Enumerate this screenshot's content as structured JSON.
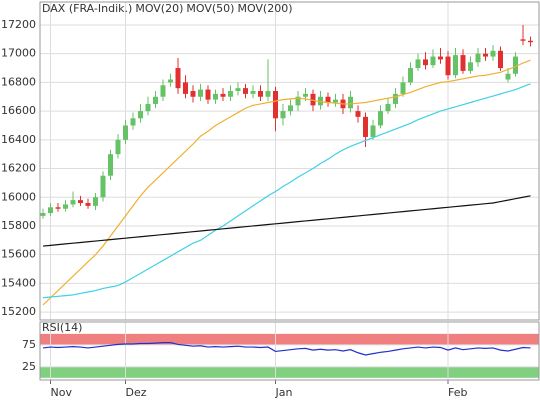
{
  "chart_data": [
    {
      "type": "candlestick",
      "categories": [
        null,
        "Nov",
        null,
        null,
        null,
        null,
        null,
        null,
        null,
        null,
        null,
        "Dez",
        null,
        null,
        null,
        null,
        null,
        null,
        null,
        null,
        null,
        null,
        null,
        null,
        null,
        null,
        null,
        null,
        null,
        null,
        null,
        "Jan",
        null,
        null,
        null,
        null,
        null,
        null,
        null,
        null,
        null,
        null,
        null,
        null,
        null,
        null,
        null,
        null,
        null,
        null,
        null,
        null,
        null,
        null,
        "Feb",
        null,
        null,
        null,
        null,
        null,
        null,
        null,
        null,
        null,
        null,
        null
      ],
      "ylim": [
        15145,
        17360
      ],
      "yticks": [
        15200,
        15400,
        15600,
        15800,
        16000,
        16200,
        16400,
        16600,
        16800,
        17000,
        17200
      ],
      "grid": true,
      "series": [
        {
          "name": "DAX (FRA-Indik.)",
          "type": "candle",
          "color": "#e05a5a",
          "up_color": "#66c266",
          "down_color": "#e03030",
          "open": [
            15870,
            15890,
            15930,
            15920,
            15950,
            15980,
            15960,
            15940,
            16000,
            16150,
            16300,
            16400,
            16500,
            16550,
            16600,
            16650,
            16700,
            16800,
            16900,
            16800,
            16740,
            16700,
            16750,
            16680,
            16720,
            16700,
            16740,
            16760,
            16720,
            16740,
            16700,
            16740,
            16550,
            16600,
            16640,
            16700,
            16720,
            16640,
            16700,
            16660,
            16680,
            16620,
            16600,
            16560,
            16420,
            16500,
            16600,
            16650,
            16720,
            16800,
            16900,
            16960,
            16920,
            16980,
            16980,
            16850,
            16990,
            16880,
            16940,
            17000,
            16980,
            17020,
            16820,
            16860,
            17100,
            17090
          ],
          "high": [
            15920,
            15960,
            15960,
            15980,
            16040,
            16010,
            15990,
            16030,
            16180,
            16330,
            16440,
            16540,
            16590,
            16650,
            16700,
            16740,
            16820,
            16860,
            16970,
            16850,
            16780,
            16790,
            16780,
            16750,
            16760,
            16780,
            16800,
            16790,
            16780,
            16780,
            16960,
            16770,
            16650,
            16680,
            16740,
            16760,
            16750,
            16740,
            16730,
            16720,
            16720,
            16740,
            16640,
            16590,
            16540,
            16640,
            16690,
            16760,
            16840,
            16940,
            17000,
            17010,
            17030,
            17040,
            17020,
            17040,
            17030,
            16980,
            17040,
            17040,
            17060,
            17050,
            16900,
            17010,
            17200,
            17120
          ],
          "low": [
            15850,
            15870,
            15900,
            15900,
            15930,
            15940,
            15920,
            15910,
            15970,
            16120,
            16270,
            16370,
            16470,
            16520,
            16570,
            16620,
            16670,
            16770,
            16720,
            16690,
            16660,
            16670,
            16650,
            16650,
            16670,
            16670,
            16710,
            16690,
            16690,
            16670,
            16670,
            16460,
            16500,
            16570,
            16600,
            16670,
            16600,
            16610,
            16630,
            16630,
            16580,
            16590,
            16520,
            16350,
            16400,
            16480,
            16580,
            16620,
            16700,
            16780,
            16880,
            16890,
            16900,
            16930,
            16820,
            16830,
            16860,
            16860,
            16910,
            16950,
            16950,
            16880,
            16800,
            16840,
            17060,
            17050
          ],
          "close": [
            15890,
            15930,
            15920,
            15950,
            15980,
            15960,
            15940,
            16000,
            16150,
            16300,
            16400,
            16500,
            16550,
            16600,
            16650,
            16700,
            16780,
            16820,
            16760,
            16720,
            16700,
            16750,
            16680,
            16720,
            16700,
            16740,
            16760,
            16720,
            16740,
            16700,
            16740,
            16550,
            16600,
            16640,
            16700,
            16720,
            16640,
            16700,
            16660,
            16680,
            16620,
            16700,
            16560,
            16420,
            16500,
            16600,
            16650,
            16720,
            16800,
            16900,
            16960,
            16920,
            16980,
            16960,
            16850,
            16990,
            16880,
            16940,
            17000,
            16980,
            17020,
            16900,
            16860,
            16980,
            17090,
            17080
          ]
        },
        {
          "name": "MOV(20)",
          "type": "line",
          "color": "#f0b030",
          "values": [
            15250,
            15300,
            15350,
            15400,
            15450,
            15500,
            15550,
            15600,
            15660,
            15730,
            15800,
            15870,
            15940,
            16010,
            16070,
            16120,
            16170,
            16220,
            16270,
            16320,
            16370,
            16425,
            16460,
            16500,
            16530,
            16560,
            16590,
            16620,
            16640,
            16650,
            16660,
            16670,
            16680,
            16685,
            16690,
            16685,
            16675,
            16665,
            16660,
            16655,
            16650,
            16650,
            16655,
            16660,
            16670,
            16680,
            16690,
            16700,
            16715,
            16730,
            16750,
            16770,
            16785,
            16800,
            16805,
            16815,
            16825,
            16835,
            16845,
            16850,
            16860,
            16870,
            16890,
            16910,
            16935,
            16955
          ]
        },
        {
          "name": "MOV(50)",
          "type": "line",
          "color": "#40d0e8",
          "values": [
            15300,
            15305,
            15310,
            15315,
            15320,
            15330,
            15340,
            15350,
            15365,
            15375,
            15385,
            15410,
            15440,
            15470,
            15500,
            15530,
            15560,
            15590,
            15620,
            15650,
            15680,
            15700,
            15735,
            15770,
            15800,
            15835,
            15870,
            15905,
            15940,
            15975,
            16010,
            16040,
            16075,
            16105,
            16140,
            16170,
            16200,
            16235,
            16265,
            16300,
            16330,
            16355,
            16375,
            16395,
            16415,
            16435,
            16455,
            16475,
            16495,
            16515,
            16540,
            16560,
            16580,
            16600,
            16615,
            16630,
            16645,
            16660,
            16675,
            16690,
            16705,
            16720,
            16735,
            16750,
            16770,
            16790
          ]
        },
        {
          "name": "MOV(200)",
          "type": "line",
          "color": "#111111",
          "values": [
            15660,
            15665,
            15670,
            15675,
            15680,
            15685,
            15690,
            15695,
            15700,
            15705,
            15710,
            15715,
            15720,
            15725,
            15730,
            15735,
            15740,
            15745,
            15750,
            15755,
            15760,
            15765,
            15770,
            15775,
            15780,
            15785,
            15790,
            15795,
            15800,
            15805,
            15810,
            15815,
            15820,
            15825,
            15830,
            15835,
            15840,
            15845,
            15850,
            15855,
            15860,
            15865,
            15870,
            15875,
            15880,
            15885,
            15890,
            15895,
            15900,
            15905,
            15910,
            15915,
            15920,
            15925,
            15930,
            15935,
            15940,
            15945,
            15950,
            15955,
            15960,
            15970,
            15980,
            15990,
            16000,
            16010
          ]
        }
      ]
    },
    {
      "type": "line",
      "title": "RSI(14)",
      "ylim": [
        -5,
        127
      ],
      "yticks": [
        25,
        75
      ],
      "bands": [
        {
          "from": 75,
          "to": 100,
          "color": "#f08080"
        },
        {
          "from": 0,
          "to": 25,
          "color": "#80d080"
        }
      ],
      "series": [
        {
          "color": "#2030d0",
          "values": [
            68,
            70,
            69,
            70,
            71,
            70,
            68,
            70,
            72,
            74,
            76,
            77,
            77,
            78,
            78,
            79,
            80,
            80,
            76,
            74,
            72,
            73,
            70,
            71,
            70,
            71,
            72,
            70,
            70,
            69,
            70,
            60,
            62,
            64,
            66,
            67,
            63,
            65,
            63,
            64,
            61,
            64,
            57,
            52,
            55,
            58,
            60,
            63,
            66,
            68,
            70,
            68,
            70,
            69,
            63,
            68,
            64,
            66,
            68,
            67,
            68,
            63,
            61,
            65,
            69,
            68
          ]
        }
      ]
    }
  ]
}
